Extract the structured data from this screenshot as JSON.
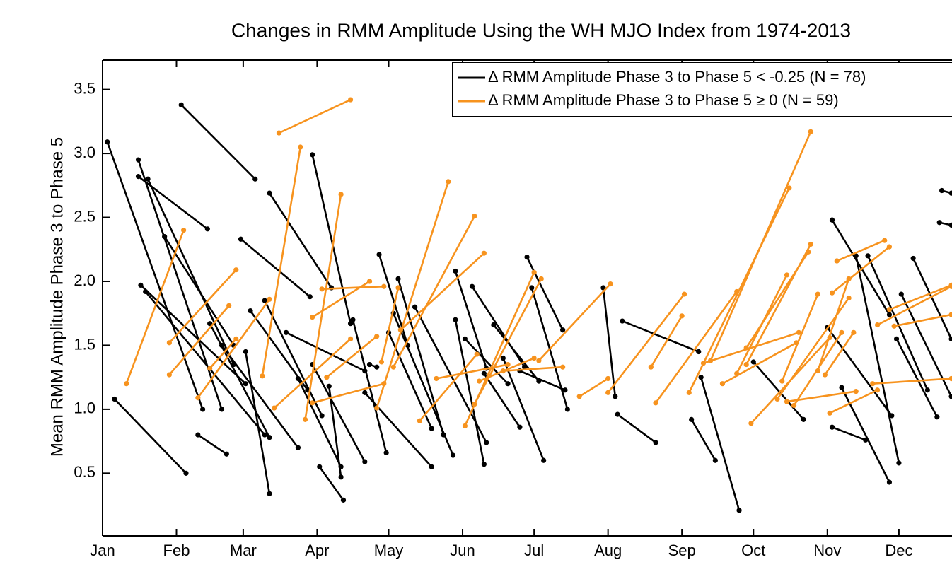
{
  "chart_data": {
    "type": "segments",
    "title": "Changes in RMM Amplitude Using the WH MJO Index from 1974-2013",
    "y_label": "Mean RMM Amplitude Phase 3 to Phase 5",
    "xlim": [
      0,
      356
    ],
    "xticks": [
      {
        "value": 0,
        "label": "Jan"
      },
      {
        "value": 31,
        "label": "Feb"
      },
      {
        "value": 59,
        "label": "Mar"
      },
      {
        "value": 90,
        "label": "Apr"
      },
      {
        "value": 120,
        "label": "May"
      },
      {
        "value": 151,
        "label": "Jun"
      },
      {
        "value": 181,
        "label": "Jul"
      },
      {
        "value": 212,
        "label": "Aug"
      },
      {
        "value": 243,
        "label": "Sep"
      },
      {
        "value": 273,
        "label": "Oct"
      },
      {
        "value": 304,
        "label": "Nov"
      },
      {
        "value": 334,
        "label": "Dec"
      }
    ],
    "ylim": [
      0.01,
      3.73
    ],
    "yticks": [
      0.5,
      {
        "value": 1,
        "label": "1.0"
      },
      1.5,
      {
        "value": 2,
        "label": "2.0"
      },
      2.5,
      {
        "value": 3,
        "label": "3.0"
      },
      3.5
    ],
    "legend": "upper right",
    "series": [
      {
        "name": "Δ RMM Amplitude Phase 3 to Phase 5 < -0.25 (N = 78)",
        "color": "#000000",
        "x": [
          [
            2,
            42
          ],
          [
            5,
            35
          ],
          [
            15,
            50
          ],
          [
            15,
            44
          ],
          [
            16,
            60
          ],
          [
            18,
            68
          ],
          [
            19,
            55
          ],
          [
            33,
            64
          ],
          [
            26,
            55
          ],
          [
            40,
            52
          ],
          [
            45,
            70
          ],
          [
            50,
            82
          ],
          [
            58,
            87
          ],
          [
            60,
            70
          ],
          [
            62,
            86
          ],
          [
            70,
            96
          ],
          [
            68,
            92
          ],
          [
            77,
            110
          ],
          [
            82,
            100
          ],
          [
            88,
            104
          ],
          [
            88,
            110
          ],
          [
            95,
            100
          ],
          [
            91,
            101
          ],
          [
            105,
            119
          ],
          [
            112,
            115
          ],
          [
            116,
            128
          ],
          [
            110,
            138
          ],
          [
            120,
            138
          ],
          [
            122,
            147
          ],
          [
            124,
            143
          ],
          [
            131,
            161
          ],
          [
            148,
            161
          ],
          [
            148,
            160
          ],
          [
            152,
            170
          ],
          [
            155,
            177
          ],
          [
            160,
            175
          ],
          [
            164,
            183
          ],
          [
            178,
            193
          ],
          [
            180,
            195
          ],
          [
            168,
            185
          ],
          [
            175,
            194
          ],
          [
            218,
            250
          ],
          [
            216,
            232
          ],
          [
            247,
            257
          ],
          [
            251,
            267
          ],
          [
            210,
            215
          ],
          [
            273,
            294
          ],
          [
            306,
            330
          ],
          [
            304,
            331
          ],
          [
            306,
            320
          ],
          [
            310,
            330
          ],
          [
            316,
            334
          ],
          [
            321,
            346
          ],
          [
            333,
            350
          ],
          [
            340,
            356
          ],
          [
            335,
            356
          ],
          [
            352,
            356
          ],
          [
            351,
            356
          ]
        ],
        "values": [
          [
            3.09,
            1.0
          ],
          [
            1.08,
            0.5
          ],
          [
            2.95,
            1.0
          ],
          [
            2.82,
            2.41
          ],
          [
            1.97,
            1.2
          ],
          [
            1.92,
            0.8
          ],
          [
            2.8,
            1.35
          ],
          [
            3.38,
            2.8
          ],
          [
            2.35,
            1.5
          ],
          [
            0.8,
            0.65
          ],
          [
            1.67,
            0.78
          ],
          [
            1.5,
            0.7
          ],
          [
            2.33,
            1.88
          ],
          [
            1.45,
            0.34
          ],
          [
            1.77,
            1.15
          ],
          [
            2.69,
            1.95
          ],
          [
            1.85,
            0.95
          ],
          [
            1.6,
            1.3
          ],
          [
            1.24,
            0.55
          ],
          [
            2.99,
            1.67
          ],
          [
            1.35,
            0.59
          ],
          [
            1.18,
            0.47
          ],
          [
            0.55,
            0.29
          ],
          [
            1.7,
            0.66
          ],
          [
            1.35,
            1.33
          ],
          [
            2.21,
            1.5
          ],
          [
            1.13,
            0.55
          ],
          [
            1.6,
            0.85
          ],
          [
            1.75,
            0.64
          ],
          [
            2.02,
            0.8
          ],
          [
            1.8,
            0.74
          ],
          [
            2.08,
            1.32
          ],
          [
            1.7,
            0.57
          ],
          [
            1.55,
            1.2
          ],
          [
            1.96,
            1.33
          ],
          [
            1.28,
            0.86
          ],
          [
            1.66,
            1.22
          ],
          [
            2.19,
            1.62
          ],
          [
            1.95,
            1.0
          ],
          [
            1.4,
            0.6
          ],
          [
            1.3,
            1.15
          ],
          [
            1.69,
            1.45
          ],
          [
            0.96,
            0.74
          ],
          [
            0.92,
            0.6
          ],
          [
            1.25,
            0.21
          ],
          [
            1.95,
            1.1
          ],
          [
            1.37,
            0.92
          ],
          [
            2.48,
            1.74
          ],
          [
            1.64,
            0.95
          ],
          [
            0.86,
            0.76
          ],
          [
            1.17,
            0.43
          ],
          [
            2.2,
            0.58
          ],
          [
            2.2,
            1.15
          ],
          [
            1.55,
            0.94
          ],
          [
            2.18,
            1.55
          ],
          [
            1.9,
            1.1
          ],
          [
            2.71,
            2.69
          ],
          [
            2.46,
            2.44
          ]
        ]
      },
      {
        "name": "Δ RMM Amplitude Phase 3 to Phase 5 ≥ 0 (N = 59)",
        "color": "#f7931e",
        "x": [
          [
            10,
            34
          ],
          [
            28,
            56
          ],
          [
            28,
            53
          ],
          [
            40,
            70
          ],
          [
            45,
            56
          ],
          [
            74,
            104
          ],
          [
            67,
            83
          ],
          [
            72,
            104
          ],
          [
            85,
            100
          ],
          [
            88,
            112
          ],
          [
            92,
            118
          ],
          [
            88,
            118
          ],
          [
            94,
            115
          ],
          [
            117,
            124
          ],
          [
            115,
            145
          ],
          [
            122,
            156
          ],
          [
            125,
            160
          ],
          [
            133,
            157
          ],
          [
            140,
            170
          ],
          [
            152,
            181
          ],
          [
            156,
            184
          ],
          [
            158,
            181
          ],
          [
            168,
            193
          ],
          [
            183,
            213
          ],
          [
            200,
            212
          ],
          [
            212,
            244
          ],
          [
            230,
            243
          ],
          [
            232,
            266
          ],
          [
            246,
            288
          ],
          [
            252,
            292
          ],
          [
            255,
            297
          ],
          [
            260,
            291
          ],
          [
            266,
            287
          ],
          [
            270,
            297
          ],
          [
            270,
            296
          ],
          [
            272,
            305
          ],
          [
            283,
            313
          ],
          [
            287,
            316
          ],
          [
            285,
            300
          ],
          [
            290,
            310
          ],
          [
            300,
            313
          ],
          [
            303,
            315
          ],
          [
            308,
            328
          ],
          [
            306,
            330
          ],
          [
            305,
            325
          ],
          [
            323,
            356
          ],
          [
            325,
            356
          ],
          [
            330,
            356
          ],
          [
            332,
            356
          ]
        ],
        "values": [
          [
            1.2,
            2.4
          ],
          [
            1.52,
            2.09
          ],
          [
            1.27,
            1.81
          ],
          [
            1.09,
            1.86
          ],
          [
            1.32,
            1.55
          ],
          [
            3.16,
            3.42
          ],
          [
            1.26,
            3.05
          ],
          [
            1.01,
            1.55
          ],
          [
            0.92,
            2.68
          ],
          [
            1.72,
            2.0
          ],
          [
            1.94,
            1.96
          ],
          [
            1.05,
            1.2
          ],
          [
            1.25,
            1.57
          ],
          [
            1.37,
            1.95
          ],
          [
            1.01,
            2.78
          ],
          [
            1.33,
            2.51
          ],
          [
            1.62,
            2.22
          ],
          [
            0.91,
            1.43
          ],
          [
            1.24,
            1.35
          ],
          [
            0.87,
            2.07
          ],
          [
            1.04,
            2.02
          ],
          [
            1.22,
            1.4
          ],
          [
            1.3,
            1.33
          ],
          [
            1.38,
            1.98
          ],
          [
            1.1,
            1.24
          ],
          [
            1.13,
            1.9
          ],
          [
            1.33,
            1.73
          ],
          [
            1.05,
            1.92
          ],
          [
            1.13,
            2.73
          ],
          [
            1.36,
            1.6
          ],
          [
            1.38,
            3.17
          ],
          [
            1.2,
            1.52
          ],
          [
            1.28,
            2.05
          ],
          [
            1.35,
            2.29
          ],
          [
            1.48,
            2.23
          ],
          [
            0.89,
            1.56
          ],
          [
            1.08,
            1.87
          ],
          [
            1.06,
            1.14
          ],
          [
            1.22,
            1.9
          ],
          [
            1.03,
            1.6
          ],
          [
            1.3,
            2.02
          ],
          [
            1.27,
            1.6
          ],
          [
            2.16,
            2.32
          ],
          [
            1.91,
            2.27
          ],
          [
            0.97,
            1.15
          ],
          [
            1.2,
            1.24
          ],
          [
            1.66,
            1.96
          ],
          [
            1.78,
            1.97
          ],
          [
            1.65,
            1.74
          ]
        ]
      }
    ]
  }
}
